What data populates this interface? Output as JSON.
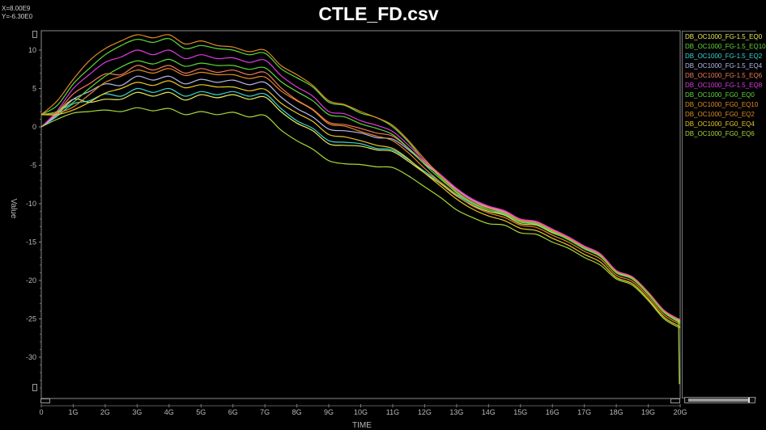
{
  "title": "CTLE_FD.csv",
  "cursor": {
    "x": "X=8.00E9",
    "y": "Y=-6.30E0"
  },
  "colors": {
    "yellow": "#e8e85a",
    "green": "#60d63a",
    "cyan": "#3ad6d6",
    "lavender": "#b8b8f0",
    "salmon": "#f07a5a",
    "magenta": "#e03ae0",
    "orange": "#e08a28",
    "gold": "#e8c828",
    "lime": "#a8d838"
  },
  "chart_data": {
    "type": "line",
    "title": "CTLE_FD.csv",
    "xlabel": "TIME",
    "ylabel": "Value",
    "xlim": [
      0,
      20
    ],
    "ylim": [
      -36,
      12
    ],
    "x_unit": "G",
    "x_ticks": [
      "0",
      "1G",
      "2G",
      "3G",
      "4G",
      "5G",
      "6G",
      "7G",
      "8G",
      "9G",
      "10G",
      "11G",
      "12G",
      "13G",
      "14G",
      "15G",
      "16G",
      "17G",
      "18G",
      "19G",
      "20G"
    ],
    "y_ticks": [
      {
        "value": 10,
        "label": "10"
      },
      {
        "value": 5,
        "label": "5"
      },
      {
        "value": 0,
        "label": "0"
      },
      {
        "value": -5,
        "label": "-5"
      },
      {
        "value": -10,
        "label": "-10"
      },
      {
        "value": -15,
        "label": "-15"
      },
      {
        "value": -20,
        "label": "-20"
      },
      {
        "value": -25,
        "label": "-25"
      },
      {
        "value": -30,
        "label": "-30"
      }
    ],
    "grid": false,
    "legend_position": "right",
    "x": [
      0,
      0.5,
      1,
      1.5,
      2,
      2.5,
      3,
      3.5,
      4,
      4.5,
      5,
      5.5,
      6,
      6.5,
      7,
      7.5,
      8,
      8.5,
      9,
      9.5,
      10,
      10.5,
      11,
      11.5,
      12,
      12.5,
      13,
      13.5,
      14,
      14.5,
      15,
      15.5,
      16,
      16.5,
      17,
      17.5,
      18,
      18.5,
      19,
      19.5,
      20
    ],
    "series": [
      {
        "name": "DB_OC1000_FG-1.5_EQ0",
        "color": "#e8e85a",
        "values": [
          0,
          1.8,
          3.6,
          3.2,
          3.6,
          3.6,
          4.5,
          4.0,
          4.5,
          3.5,
          4.2,
          3.8,
          4.2,
          3.6,
          3.9,
          2.0,
          0.5,
          -0.5,
          -2.2,
          -2.4,
          -2.5,
          -3.0,
          -3.2,
          -4.5,
          -6.0,
          -7.4,
          -9.0,
          -10.2,
          -11.0,
          -11.5,
          -12.6,
          -12.8,
          -13.8,
          -14.6,
          -15.8,
          -16.8,
          -19.0,
          -19.8,
          -21.8,
          -24.2,
          -25.5
        ]
      },
      {
        "name": "DB_OC1000_FG-1.5_EQ10",
        "color": "#60d63a",
        "values": [
          1.6,
          2.8,
          5.6,
          7.6,
          9.4,
          10.6,
          11.4,
          11.0,
          11.5,
          10.2,
          10.6,
          10.2,
          10.0,
          9.4,
          9.6,
          7.6,
          6.4,
          5.2,
          3.2,
          2.8,
          1.8,
          1.2,
          0.0,
          -2.0,
          -4.5,
          -6.6,
          -8.6,
          -10.0,
          -10.8,
          -11.3,
          -12.3,
          -12.6,
          -13.6,
          -14.6,
          -15.8,
          -16.8,
          -18.8,
          -19.6,
          -21.6,
          -24.0,
          -25.2
        ]
      },
      {
        "name": "DB_OC1000_FG-1.5_EQ2",
        "color": "#3ad6d6",
        "values": [
          0,
          1.4,
          3.0,
          3.4,
          4.3,
          4.0,
          5.0,
          4.5,
          5.0,
          4.0,
          4.6,
          4.2,
          4.6,
          4.0,
          4.3,
          2.4,
          0.8,
          -0.2,
          -1.8,
          -2.0,
          -2.2,
          -2.8,
          -3.0,
          -4.3,
          -5.8,
          -7.2,
          -8.8,
          -10.0,
          -10.8,
          -11.3,
          -12.4,
          -12.6,
          -13.6,
          -14.6,
          -15.8,
          -16.8,
          -19.0,
          -19.8,
          -21.8,
          -24.2,
          -25.4
        ]
      },
      {
        "name": "DB_OC1000_FG-1.5_EQ4",
        "color": "#b8b8f0",
        "values": [
          0,
          1.6,
          3.6,
          4.6,
          5.6,
          5.4,
          6.6,
          6.1,
          6.6,
          5.6,
          6.2,
          5.8,
          6.1,
          5.5,
          5.8,
          3.9,
          2.4,
          1.3,
          -0.3,
          -0.5,
          -0.8,
          -1.4,
          -1.6,
          -3.0,
          -4.8,
          -6.4,
          -8.2,
          -9.6,
          -10.5,
          -11.1,
          -12.2,
          -12.5,
          -13.5,
          -14.5,
          -15.7,
          -16.7,
          -18.9,
          -19.7,
          -21.7,
          -24.1,
          -25.3
        ]
      },
      {
        "name": "DB_OC1000_FG-1.5_EQ6",
        "color": "#f07a5a",
        "values": [
          0,
          1.9,
          4.3,
          5.6,
          6.9,
          6.8,
          8.0,
          7.4,
          8.0,
          7.0,
          7.6,
          7.1,
          7.4,
          6.8,
          7.1,
          5.1,
          3.5,
          2.3,
          0.6,
          0.3,
          -0.2,
          -0.8,
          -1.2,
          -2.8,
          -4.6,
          -6.3,
          -8.1,
          -9.5,
          -10.4,
          -11.0,
          -12.1,
          -12.4,
          -13.4,
          -14.4,
          -15.6,
          -16.6,
          -18.8,
          -19.6,
          -21.6,
          -24.0,
          -25.2
        ]
      },
      {
        "name": "DB_OC1000_FG-1.5_EQ8",
        "color": "#e03ae0",
        "values": [
          0,
          2.1,
          5.0,
          6.8,
          8.4,
          9.1,
          10.0,
          9.4,
          10.0,
          8.9,
          9.4,
          8.9,
          9.0,
          8.4,
          8.7,
          6.7,
          5.2,
          4.0,
          2.0,
          1.7,
          0.8,
          0.2,
          -0.6,
          -2.4,
          -4.4,
          -6.2,
          -8.0,
          -9.4,
          -10.3,
          -10.9,
          -12.0,
          -12.3,
          -13.3,
          -14.3,
          -15.5,
          -16.5,
          -18.7,
          -19.5,
          -21.5,
          -23.9,
          -25.1
        ]
      },
      {
        "name": "DB_OC1000_FG0_EQ0",
        "color": "#60d63a",
        "values": [
          1.6,
          2.0,
          3.2,
          5.0,
          6.6,
          7.8,
          8.6,
          8.2,
          8.8,
          7.9,
          8.3,
          8.0,
          8.0,
          7.5,
          7.7,
          5.9,
          4.6,
          3.4,
          1.6,
          1.3,
          0.4,
          -0.2,
          -1.0,
          -2.8,
          -4.9,
          -6.8,
          -8.5,
          -9.9,
          -10.8,
          -11.4,
          -12.4,
          -12.7,
          -13.7,
          -14.7,
          -15.9,
          -16.9,
          -19.0,
          -19.8,
          -21.8,
          -24.2,
          -25.4
        ]
      },
      {
        "name": "DB_OC1000_FG0_EQ10",
        "color": "#e08a28",
        "values": [
          1.6,
          3.4,
          6.2,
          8.6,
          10.2,
          11.2,
          12.0,
          11.6,
          12.0,
          10.8,
          11.2,
          10.6,
          10.4,
          9.8,
          10.0,
          8.0,
          6.8,
          5.4,
          3.4,
          2.9,
          2.0,
          1.2,
          0.2,
          -1.8,
          -4.2,
          -6.4,
          -8.4,
          -9.8,
          -10.6,
          -11.2,
          -12.2,
          -12.5,
          -13.5,
          -14.5,
          -15.7,
          -16.7,
          -18.8,
          -19.6,
          -21.6,
          -24.0,
          -25.2
        ]
      },
      {
        "name": "DB_OC1000_FG0_EQ2",
        "color": "#e08a28",
        "values": [
          1.6,
          1.8,
          2.6,
          4.2,
          5.8,
          6.6,
          7.4,
          7.0,
          7.6,
          6.7,
          7.1,
          6.8,
          6.8,
          6.3,
          6.5,
          4.7,
          3.4,
          2.2,
          0.4,
          0.1,
          -0.6,
          -1.2,
          -1.8,
          -3.4,
          -5.4,
          -7.2,
          -8.9,
          -10.3,
          -11.2,
          -11.8,
          -12.8,
          -13.1,
          -14.1,
          -15.0,
          -16.2,
          -17.2,
          -19.3,
          -20.1,
          -22.1,
          -24.5,
          -25.7
        ]
      },
      {
        "name": "DB_OC1000_FG0_EQ4",
        "color": "#e8c828",
        "values": [
          1.6,
          1.6,
          2.2,
          3.2,
          4.4,
          5.0,
          5.8,
          5.4,
          6.0,
          5.1,
          5.5,
          5.2,
          5.2,
          4.7,
          4.9,
          3.1,
          1.8,
          0.7,
          -1.0,
          -1.3,
          -1.8,
          -2.4,
          -2.8,
          -4.2,
          -6.0,
          -7.7,
          -9.4,
          -10.7,
          -11.6,
          -12.2,
          -13.2,
          -13.5,
          -14.5,
          -15.4,
          -16.6,
          -17.6,
          -19.6,
          -20.4,
          -22.4,
          -24.8,
          -26.0
        ]
      },
      {
        "name": "DB_OC1000_FG0_EQ6",
        "color": "#a8d838",
        "values": [
          0,
          1.0,
          1.8,
          2.0,
          2.2,
          2.0,
          2.5,
          2.1,
          2.4,
          1.6,
          2.0,
          1.6,
          1.9,
          1.3,
          1.5,
          -0.4,
          -1.8,
          -2.9,
          -4.4,
          -4.8,
          -4.9,
          -5.2,
          -5.3,
          -6.4,
          -7.8,
          -9.2,
          -10.8,
          -11.8,
          -12.6,
          -12.8,
          -13.8,
          -14.0,
          -15.0,
          -15.8,
          -17.0,
          -18.0,
          -19.8,
          -20.6,
          -22.6,
          -25.0,
          -26.2
        ]
      }
    ]
  }
}
